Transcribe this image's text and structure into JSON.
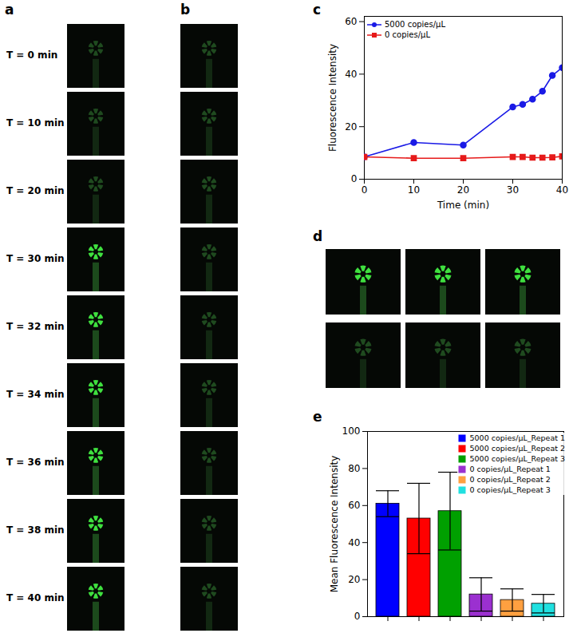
{
  "figure": {
    "panel_a": {
      "panel_label": "a",
      "frames": [
        "T = 0 min",
        "T = 10 min",
        "T = 20 min",
        "T = 30 min",
        "T = 32 min",
        "T = 34 min",
        "T = 36 min",
        "T = 38 min",
        "T = 40 min"
      ]
    },
    "panel_b": {
      "panel_label": "b"
    },
    "panel_d": {
      "panel_label": "d"
    }
  },
  "chart_data": [
    {
      "panel_label": "c",
      "type": "line",
      "x": [
        0,
        10,
        20,
        30,
        32,
        34,
        36,
        38,
        40
      ],
      "xlim": [
        0,
        40
      ],
      "xticks": [
        0,
        10,
        20,
        30,
        40
      ],
      "ylim": [
        0,
        62
      ],
      "yticks": [
        0,
        20,
        40,
        60
      ],
      "xlabel": "Time (min)",
      "ylabel": "Fluorescence Intensity",
      "legend": "top-left",
      "series": [
        {
          "name": "5000 copies/μL",
          "color": "#1a1ae6",
          "marker": "circle",
          "values": [
            8.5,
            14,
            13,
            27.5,
            28.5,
            30.5,
            33.5,
            39.5,
            42.5
          ]
        },
        {
          "name": "0 copies/μL",
          "color": "#e61a1a",
          "marker": "square",
          "values": [
            8.5,
            8,
            8,
            8.5,
            8.5,
            8.2,
            8.2,
            8.3,
            8.7
          ]
        }
      ]
    },
    {
      "panel_label": "e",
      "type": "bar",
      "categories": [
        "5000 copies/μL_Repeat 1",
        "5000 copies/μL_Repeat 2",
        "5000 copies/μL_Repeat 3",
        "0 copies/μL_Repeat 1",
        "0 copies/μL_Repeat 2",
        "0 copies/μL_Repeat 3"
      ],
      "values": [
        61,
        53,
        57,
        12,
        9,
        7
      ],
      "errors": [
        7,
        19,
        21,
        9,
        6,
        5
      ],
      "colors": [
        "#0000ff",
        "#ff0000",
        "#00a000",
        "#9b30d0",
        "#ffa040",
        "#20e0e0"
      ],
      "ylim": [
        0,
        100
      ],
      "yticks": [
        0,
        20,
        40,
        60,
        80,
        100
      ],
      "ylabel": "Mean Fluorescence Intensity",
      "legend": "top-right",
      "tick_labels": "y"
    }
  ]
}
